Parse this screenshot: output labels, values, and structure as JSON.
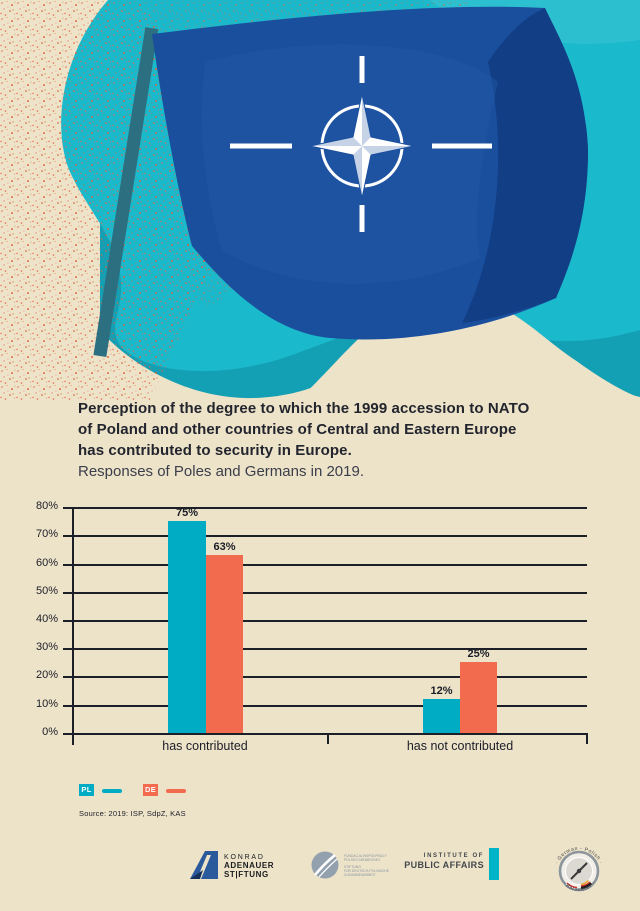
{
  "title": {
    "line1": "Perception of the degree to which the 1999 accession to NATO",
    "line2": "of Poland and other countries of Central and Eastern Europe",
    "line3": "has contributed to security in Europe.",
    "subtitle": "Responses of Poles and Germans in 2019."
  },
  "chart_data": {
    "type": "bar",
    "categories": [
      "has contributed",
      "has not contributed"
    ],
    "series": [
      {
        "name": "PL",
        "color": "#00ACC4",
        "values": [
          75,
          12
        ],
        "labels": [
          "75%",
          "12%"
        ]
      },
      {
        "name": "DE",
        "color": "#F26B4F",
        "values": [
          63,
          25
        ],
        "labels": [
          "63%",
          "25%"
        ]
      }
    ],
    "ylabel": "",
    "xlabel": "",
    "ylim": [
      0,
      80
    ],
    "grid": true,
    "y_ticks": [
      "80%",
      "70%",
      "60%",
      "50%",
      "40%",
      "30%",
      "20%",
      "10%",
      "0%"
    ],
    "legend_position": "bottom-left"
  },
  "legend": {
    "pl_label": "PL",
    "de_label": "DE"
  },
  "source": {
    "text": "Source: 2019: ISP, SdpZ, KAS"
  },
  "footer": {
    "kas": {
      "line1": "KONRAD",
      "line2": "ADENAUER",
      "line3": "ST|FTUNG"
    },
    "fwpn": {
      "line1": "FUNDACJA WSPÓŁPRACY",
      "line2": "POLSKO-NIEMIECKIEJ",
      "line3": "STIFTUNG",
      "line4": "FÜR DEUTSCH-POLNISCHE",
      "line5": "ZUSAMMENARBEIT"
    },
    "ipa": {
      "line1": "INSTITUTE OF",
      "line2": "PUBLIC AFFAIRS"
    },
    "barometer": {
      "arc_top": "· German - Polish ·",
      "arc_bottom": "· Barometer ·"
    }
  },
  "colors": {
    "background_cream": "#EDE3C9",
    "teal_main": "#1BB9CC",
    "teal_dark_wave": "#14A0B4",
    "flag_blue": "#1A4F9E",
    "flag_dark_blue": "#123E86",
    "pole": "#2C6F80",
    "speckle_orange": "#E2603A",
    "bar_pl": "#00ACC4",
    "bar_de": "#F26B4F",
    "grid_dark": "#1C1E28"
  }
}
